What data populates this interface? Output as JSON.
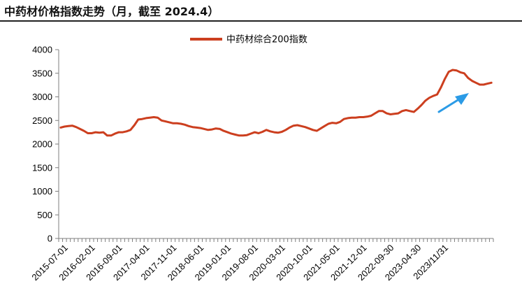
{
  "title": "中药材价格指数走势（月，截至 2024.4）",
  "colors": {
    "series": "#cc3f1f",
    "arrow": "#2b9be6",
    "axis": "#7f7f7f"
  },
  "chart_data": {
    "type": "line",
    "legend": "top-center",
    "grid": false,
    "ylim": [
      0,
      4000
    ],
    "yticks": [
      0,
      500,
      1000,
      1500,
      2000,
      2500,
      3000,
      3500,
      4000
    ],
    "yticks_text": [
      "0",
      "500",
      "1000",
      "1500",
      "2000",
      "2500",
      "3000",
      "3500",
      "4000"
    ],
    "xticks": [
      "2015-07-01",
      "2016-02-01",
      "2016-09-01",
      "2017-04-01",
      "2017-11-01",
      "2018-06-01",
      "2019-01-01",
      "2019-08-01",
      "2020-03-01",
      "2020-10-01",
      "2021-05-01",
      "2021-12-01",
      "2022-09-30",
      "2023-04-30",
      "2023/11/31"
    ],
    "series": [
      {
        "name": "中药材综合200指数",
        "values": [
          2350,
          2370,
          2380,
          2390,
          2360,
          2320,
          2280,
          2230,
          2230,
          2250,
          2240,
          2250,
          2180,
          2180,
          2220,
          2250,
          2250,
          2270,
          2300,
          2400,
          2520,
          2530,
          2550,
          2560,
          2570,
          2560,
          2500,
          2480,
          2460,
          2440,
          2440,
          2430,
          2410,
          2380,
          2360,
          2350,
          2340,
          2320,
          2300,
          2310,
          2330,
          2320,
          2280,
          2250,
          2220,
          2200,
          2180,
          2180,
          2190,
          2220,
          2250,
          2230,
          2260,
          2300,
          2270,
          2250,
          2240,
          2260,
          2300,
          2350,
          2390,
          2400,
          2380,
          2360,
          2330,
          2300,
          2280,
          2330,
          2380,
          2430,
          2450,
          2440,
          2470,
          2530,
          2550,
          2560,
          2560,
          2570,
          2570,
          2580,
          2600,
          2650,
          2700,
          2700,
          2650,
          2630,
          2640,
          2650,
          2700,
          2720,
          2700,
          2680,
          2750,
          2830,
          2920,
          2980,
          3020,
          3050,
          3200,
          3380,
          3530,
          3570,
          3560,
          3520,
          3500,
          3400,
          3340,
          3300,
          3260,
          3260,
          3280,
          3300
        ]
      }
    ]
  }
}
